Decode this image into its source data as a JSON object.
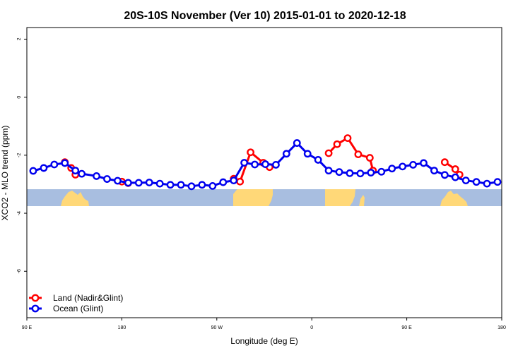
{
  "chart_data": {
    "type": "line",
    "title": "20S-10S November (Ver 10)   2015-01-01 to 2020-12-18",
    "xlabel": "Longitude (deg E)",
    "ylabel": "XCO2 - MLO trend (ppm)",
    "xlim": [
      90,
      540
    ],
    "ylim": [
      -7.6,
      2.4
    ],
    "x_ticks": [
      90,
      180,
      270,
      360,
      450,
      540
    ],
    "x_tick_labels": [
      "90 E",
      "180",
      "90 W",
      "0",
      "90 E",
      "180"
    ],
    "y_ticks": [
      2,
      0,
      -2,
      -4,
      -6
    ],
    "y_tick_labels": [
      "2",
      "0",
      "-2",
      "-4",
      "-6"
    ],
    "grid": false,
    "legend_position": "bottom-left",
    "colors": {
      "land": "#ff0000",
      "ocean": "#0000ee",
      "map_ocean": "#a8bee0",
      "map_land": "#ffd878"
    },
    "series": [
      {
        "name": "Land (Nadir&Glint)",
        "color": "#ff0000",
        "segments": [
          {
            "x": [
              126,
              132,
              136
            ],
            "y": [
              -2.24,
              -2.44,
              -2.67
            ]
          },
          {
            "x": [
              180,
              186
            ],
            "y": [
              -2.91,
              -2.96
            ]
          },
          {
            "x": [
              286,
              292,
              302,
              314,
              320
            ],
            "y": [
              -2.81,
              -2.91,
              -1.9,
              -2.26,
              -2.41
            ]
          },
          {
            "x": [
              376,
              384,
              394,
              404,
              415,
              418
            ],
            "y": [
              -1.93,
              -1.62,
              -1.41,
              -1.97,
              -2.09,
              -2.53
            ]
          },
          {
            "x": [
              486,
              496,
              500
            ],
            "y": [
              -2.24,
              -2.48,
              -2.67
            ]
          }
        ]
      },
      {
        "name": "Ocean (Glint)",
        "color": "#0000ee",
        "x": [
          96,
          106,
          116,
          126,
          136,
          142,
          156,
          166,
          176,
          186,
          196,
          206,
          216,
          226,
          236,
          246,
          256,
          266,
          276,
          286,
          296,
          306,
          316,
          326,
          336,
          346,
          356,
          366,
          376,
          386,
          396,
          406,
          416,
          426,
          436,
          446,
          456,
          466,
          476,
          486,
          496,
          506,
          516,
          526,
          536
        ],
        "y": [
          -2.54,
          -2.44,
          -2.32,
          -2.27,
          -2.53,
          -2.64,
          -2.72,
          -2.82,
          -2.88,
          -2.95,
          -2.95,
          -2.94,
          -2.98,
          -3.02,
          -3.02,
          -3.07,
          -3.02,
          -3.06,
          -2.93,
          -2.87,
          -2.26,
          -2.32,
          -2.31,
          -2.33,
          -1.95,
          -1.58,
          -1.95,
          -2.16,
          -2.53,
          -2.58,
          -2.62,
          -2.63,
          -2.6,
          -2.57,
          -2.46,
          -2.39,
          -2.33,
          -2.27,
          -2.53,
          -2.68,
          -2.76,
          -2.87,
          -2.92,
          -2.98,
          -2.92
        ]
      }
    ]
  }
}
